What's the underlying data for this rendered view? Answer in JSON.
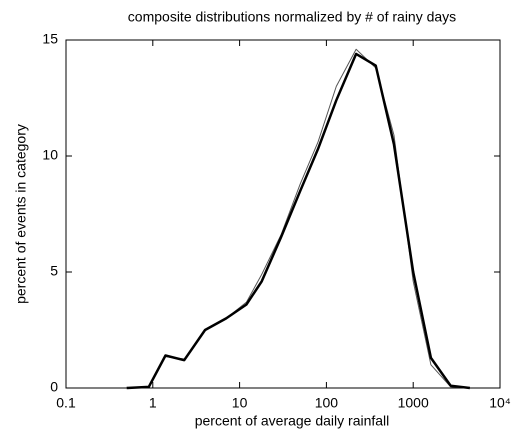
{
  "chart_data": {
    "type": "line",
    "title": "composite distributions normalized by # of rainy days",
    "x_label": "percent of average daily rainfall",
    "y_label": "percent of events in category",
    "x_scale": "log",
    "x": [
      0.5,
      0.9,
      1.4,
      2.3,
      4,
      7,
      12,
      18,
      30,
      50,
      80,
      130,
      220,
      370,
      600,
      1000,
      1600,
      2700,
      4500
    ],
    "series": [
      {
        "color": "#000000",
        "values": [
          0,
          0.05,
          1.4,
          1.2,
          2.5,
          3.0,
          3.6,
          4.6,
          6.5,
          8.5,
          10.3,
          12.4,
          14.4,
          13.9,
          10.5,
          5.0,
          1.3,
          0.1,
          0
        ]
      },
      {
        "color": "#555555",
        "values": [
          0,
          0.05,
          1.35,
          1.25,
          2.5,
          3.0,
          3.7,
          4.9,
          6.6,
          8.8,
          10.6,
          13.0,
          14.6,
          13.8,
          10.9,
          4.6,
          1.0,
          0.05,
          0
        ]
      }
    ],
    "xlim": [
      0.1,
      10000
    ],
    "xticks": [
      0.1,
      1,
      10,
      100,
      1000,
      {
        "value": 10000,
        "label": "10⁴"
      }
    ],
    "ylim": [
      0,
      15
    ],
    "yticks": [
      0,
      5,
      10,
      15
    ]
  }
}
